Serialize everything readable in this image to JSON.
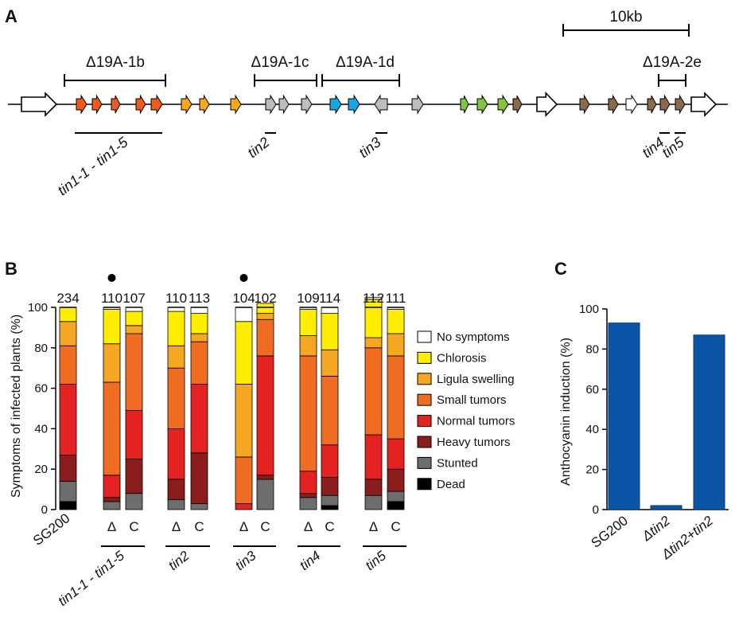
{
  "panels": {
    "a": "A",
    "b": "B",
    "c": "C"
  },
  "panel_a": {
    "scale_label": "10kb",
    "deletions": [
      "Δ19A-1b",
      "Δ19A-1c",
      "Δ19A-1d",
      "Δ19A-2e"
    ],
    "mutant_labels": [
      "tin1-1 - tin1-5",
      "tin2",
      "tin3",
      "tin4",
      "tin5"
    ],
    "gene_colors": {
      "white": "#ffffff",
      "orange_red": "#ee5a1c",
      "orange": "#f6a91b",
      "grey": "#bdbdbd",
      "cyan": "#1aa6e4",
      "green": "#86c341",
      "brown": "#8a6a48"
    }
  },
  "chart_data": [
    {
      "type": "bar",
      "stacked": true,
      "ylabel": "Symptoms of infected plants (%)",
      "ylim": [
        0,
        100
      ],
      "yticks": [
        0,
        20,
        40,
        60,
        80,
        100
      ],
      "groups": [
        "SG200",
        "tin1-1 - tin1-5",
        "tin2",
        "tin3",
        "tin4",
        "tin5"
      ],
      "bar_labels": [
        "",
        "Δ",
        "C",
        "Δ",
        "C",
        "Δ",
        "C",
        "Δ",
        "C",
        "Δ",
        "C"
      ],
      "n_counts": [
        "234",
        "110",
        "107",
        "110",
        "113",
        "104",
        "102",
        "109",
        "114",
        "112",
        "111"
      ],
      "significance_marked_bars": [
        1,
        5
      ],
      "series": [
        {
          "name": "Dead",
          "color": "#000000",
          "values": [
            4,
            0,
            0,
            0,
            0,
            0,
            0,
            0,
            2,
            0,
            4
          ]
        },
        {
          "name": "Stunted",
          "color": "#6d6d6d",
          "values": [
            10,
            4,
            8,
            5,
            3,
            0,
            15,
            6,
            5,
            7,
            5
          ]
        },
        {
          "name": "Heavy tumors",
          "color": "#8b1d1d",
          "values": [
            13,
            2,
            17,
            10,
            25,
            0,
            2,
            2,
            9,
            8,
            11
          ]
        },
        {
          "name": "Normal tumors",
          "color": "#e52222",
          "values": [
            35,
            11,
            24,
            25,
            34,
            3,
            59,
            11,
            16,
            22,
            15
          ]
        },
        {
          "name": "Small tumors",
          "color": "#ef6d22",
          "values": [
            19,
            46,
            38,
            30,
            21,
            23,
            18,
            57,
            34,
            43,
            41
          ]
        },
        {
          "name": "Ligula swelling",
          "color": "#f5a623",
          "values": [
            12,
            19,
            4,
            11,
            4,
            36,
            3,
            10,
            13,
            5,
            11
          ]
        },
        {
          "name": "Chlorosis",
          "color": "#ffee00",
          "values": [
            7,
            17,
            7,
            17,
            10,
            31,
            5,
            13,
            18,
            19,
            12
          ]
        },
        {
          "name": "No symptoms",
          "color": "#ffffff",
          "values": [
            0,
            1,
            2,
            2,
            3,
            7,
            0,
            1,
            3,
            1,
            1
          ]
        }
      ]
    },
    {
      "type": "bar",
      "ylabel": "Anthocyanin induction (%)",
      "ylim": [
        0,
        100
      ],
      "yticks": [
        0,
        20,
        40,
        60,
        80,
        100
      ],
      "categories": [
        "SG200",
        "Δtin2",
        "Δtin2+tin2"
      ],
      "values": [
        93,
        2,
        87
      ],
      "color": "#0b54a5"
    }
  ]
}
